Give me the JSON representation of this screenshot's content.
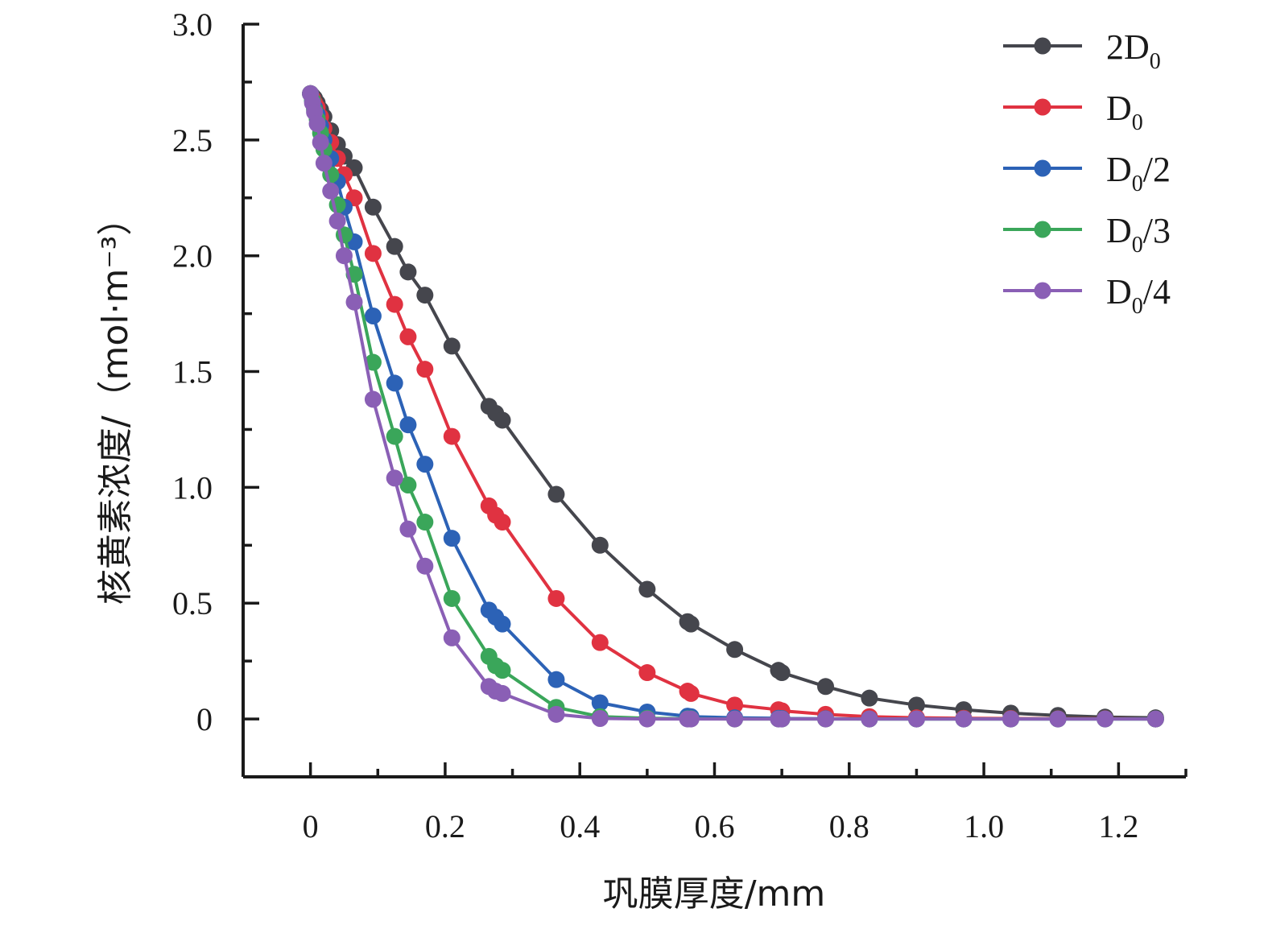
{
  "chart_data": {
    "type": "line",
    "xlabel": "巩膜厚度/mm",
    "ylabel": "核黄素浓度/（mol·m⁻³）",
    "xlim": [
      -0.1,
      1.3
    ],
    "ylim": [
      -0.25,
      3.0
    ],
    "x_ticks": [
      "0",
      "0.2",
      "0.4",
      "0.6",
      "0.8",
      "1.0",
      "1.2"
    ],
    "y_ticks": [
      "0",
      "0.5",
      "1.0",
      "1.5",
      "2.0",
      "2.5",
      "3.0"
    ],
    "legend_position": "top-right",
    "x": [
      0,
      0.003,
      0.006,
      0.01,
      0.015,
      0.02,
      0.03,
      0.04,
      0.05,
      0.065,
      0.093,
      0.125,
      0.145,
      0.17,
      0.21,
      0.265,
      0.275,
      0.285,
      0.365,
      0.43,
      0.5,
      0.56,
      0.565,
      0.63,
      0.695,
      0.7,
      0.765,
      0.83,
      0.9,
      0.97,
      1.04,
      1.11,
      1.18,
      1.255
    ],
    "series": [
      {
        "name": "2D",
        "name_subscript": "0",
        "color": "#45464d",
        "values": [
          2.7,
          2.69,
          2.68,
          2.66,
          2.63,
          2.6,
          2.54,
          2.48,
          2.43,
          2.38,
          2.21,
          2.04,
          1.93,
          1.83,
          1.61,
          1.35,
          1.32,
          1.29,
          0.97,
          0.75,
          0.56,
          0.42,
          0.41,
          0.3,
          0.21,
          0.2,
          0.14,
          0.09,
          0.06,
          0.04,
          0.025,
          0.015,
          0.008,
          0.005
        ]
      },
      {
        "name": "D",
        "name_subscript": "0",
        "color": "#e03241",
        "values": [
          2.7,
          2.68,
          2.66,
          2.64,
          2.6,
          2.55,
          2.49,
          2.42,
          2.35,
          2.25,
          2.01,
          1.79,
          1.65,
          1.51,
          1.22,
          0.92,
          0.88,
          0.85,
          0.52,
          0.33,
          0.2,
          0.12,
          0.11,
          0.06,
          0.04,
          0.035,
          0.02,
          0.01,
          0.005,
          0.003,
          0.002,
          0.001,
          0.001,
          0.0
        ]
      },
      {
        "name": "D",
        "name_subscript": "0",
        "name_suffix": "/2",
        "color": "#2c62b6",
        "values": [
          2.7,
          2.67,
          2.64,
          2.61,
          2.56,
          2.5,
          2.42,
          2.32,
          2.21,
          2.06,
          1.74,
          1.45,
          1.27,
          1.1,
          0.78,
          0.47,
          0.44,
          0.41,
          0.17,
          0.07,
          0.03,
          0.012,
          0.01,
          0.005,
          0.003,
          0.002,
          0.001,
          0.0,
          0.0,
          0.0,
          0.0,
          0.0,
          0.0,
          0.0
        ]
      },
      {
        "name": "D",
        "name_subscript": "0",
        "name_suffix": "/3",
        "color": "#3aa65a",
        "values": [
          2.7,
          2.67,
          2.63,
          2.59,
          2.53,
          2.46,
          2.35,
          2.22,
          2.09,
          1.92,
          1.54,
          1.22,
          1.01,
          0.85,
          0.52,
          0.27,
          0.23,
          0.21,
          0.05,
          0.01,
          0.003,
          0.001,
          0.001,
          0.0,
          0.0,
          0.0,
          0.0,
          0.0,
          0.0,
          0.0,
          0.0,
          0.0,
          0.0,
          0.0
        ]
      },
      {
        "name": "D",
        "name_subscript": "0",
        "name_suffix": "/4",
        "color": "#8a5fb5",
        "values": [
          2.7,
          2.66,
          2.62,
          2.57,
          2.49,
          2.4,
          2.28,
          2.15,
          2.0,
          1.8,
          1.38,
          1.04,
          0.82,
          0.66,
          0.35,
          0.14,
          0.12,
          0.11,
          0.02,
          0.002,
          0.0,
          0.0,
          0.0,
          0.0,
          0.0,
          0.0,
          0.0,
          0.0,
          0.0,
          0.0,
          0.0,
          0.0,
          0.0,
          0.0
        ]
      }
    ]
  }
}
